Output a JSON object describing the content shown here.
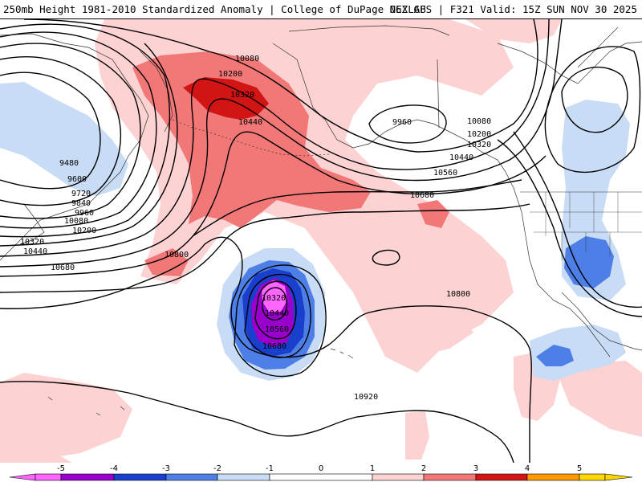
{
  "header": {
    "left": "250mb Height 1981-2010 Standardized Anomaly | College of DuPage NEXLAB",
    "right": "06Z GFS | F321 Valid: 15Z SUN NOV 30 2025"
  },
  "colors": {
    "anom_m5": "#ff66ff",
    "anom_m4": "#9900cc",
    "anom_m3": "#1a3fcc",
    "anom_m2": "#4d7fe6",
    "anom_m1": "#c8dcf5",
    "anom_p1": "#fcd2d2",
    "anom_p2": "#f27878",
    "anom_p3": "#d11414",
    "anom_p4": "#ff9900",
    "anom_p5": "#ffd700"
  },
  "contour_labels": {
    "west": [
      "9480",
      "9600",
      "9720",
      "9840",
      "9960",
      "10080",
      "10200",
      "10320",
      "10440",
      "10680"
    ],
    "ridge": [
      "10080",
      "10200",
      "10320",
      "10440"
    ],
    "low": [
      "10320",
      "10440",
      "10560",
      "10680"
    ],
    "alaska": [
      "9960"
    ],
    "east": [
      "10080",
      "10200",
      "10320",
      "10440",
      "10560",
      "10680"
    ],
    "central": [
      "10800",
      "10800",
      "10920"
    ]
  },
  "colorbar": {
    "ticks": [
      "-5",
      "-4",
      "-3",
      "-2",
      "-1",
      "0",
      "1",
      "2",
      "3",
      "4",
      "5"
    ]
  }
}
